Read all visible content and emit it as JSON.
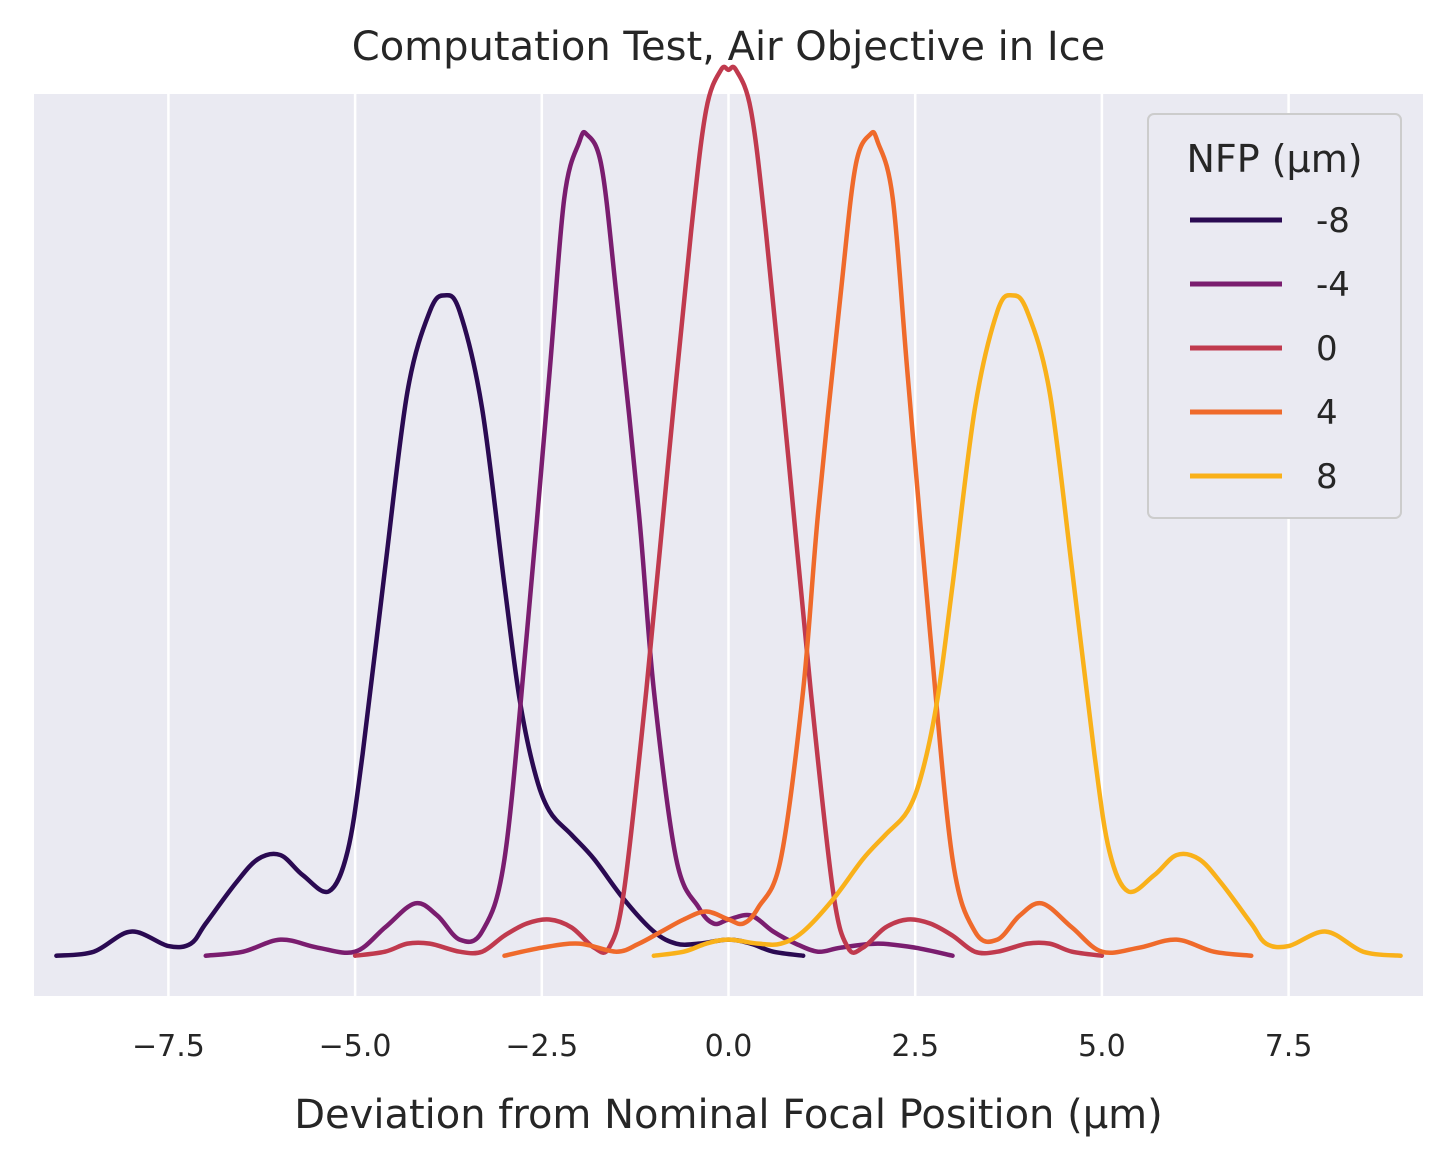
{
  "chart_data": {
    "type": "line",
    "title": "Computation Test, Air Objective in Ice",
    "xlabel": "Deviation from Nominal Focal Position (μm)",
    "ylabel": "",
    "xlim": [
      -9.3,
      9.3
    ],
    "ylim": [
      -0.05,
      1.07
    ],
    "xticks": [
      -7.5,
      -5.0,
      -2.5,
      0.0,
      2.5,
      5.0,
      7.5
    ],
    "xtick_labels": [
      "−7.5",
      "−5.0",
      "−2.5",
      "0.0",
      "2.5",
      "5.0",
      "7.5"
    ],
    "grid": "vertical",
    "background": "#eaeaf2",
    "legend": {
      "title": "NFP (μm)",
      "placement": "top-right"
    },
    "series": [
      {
        "name": "-8",
        "color": "#2a0a52",
        "x_range": [
          -9.0,
          1.0
        ],
        "points": [
          [
            -9.0,
            0.0
          ],
          [
            -8.5,
            0.005
          ],
          [
            -8.0,
            0.03
          ],
          [
            -7.5,
            0.012
          ],
          [
            -7.2,
            0.015
          ],
          [
            -7.0,
            0.04
          ],
          [
            -6.6,
            0.09
          ],
          [
            -6.3,
            0.12
          ],
          [
            -6.0,
            0.125
          ],
          [
            -5.7,
            0.1
          ],
          [
            -5.35,
            0.08
          ],
          [
            -5.1,
            0.13
          ],
          [
            -4.9,
            0.25
          ],
          [
            -4.6,
            0.48
          ],
          [
            -4.3,
            0.7
          ],
          [
            -4.0,
            0.8
          ],
          [
            -3.8,
            0.82
          ],
          [
            -3.6,
            0.8
          ],
          [
            -3.3,
            0.68
          ],
          [
            -3.0,
            0.46
          ],
          [
            -2.8,
            0.32
          ],
          [
            -2.6,
            0.23
          ],
          [
            -2.4,
            0.18
          ],
          [
            -2.1,
            0.15
          ],
          [
            -1.8,
            0.12
          ],
          [
            -1.4,
            0.07
          ],
          [
            -1.0,
            0.03
          ],
          [
            -0.7,
            0.015
          ],
          [
            -0.4,
            0.015
          ],
          [
            0.0,
            0.02
          ],
          [
            0.3,
            0.015
          ],
          [
            0.6,
            0.005
          ],
          [
            1.0,
            0.0
          ]
        ]
      },
      {
        "name": "-4",
        "color": "#7a1d6f",
        "x_range": [
          -7.0,
          3.0
        ],
        "points": [
          [
            -7.0,
            0.0
          ],
          [
            -6.5,
            0.005
          ],
          [
            -6.0,
            0.02
          ],
          [
            -5.5,
            0.01
          ],
          [
            -5.0,
            0.005
          ],
          [
            -4.6,
            0.035
          ],
          [
            -4.2,
            0.065
          ],
          [
            -3.9,
            0.05
          ],
          [
            -3.6,
            0.02
          ],
          [
            -3.3,
            0.03
          ],
          [
            -3.0,
            0.12
          ],
          [
            -2.7,
            0.4
          ],
          [
            -2.4,
            0.72
          ],
          [
            -2.2,
            0.94
          ],
          [
            -2.0,
            1.01
          ],
          [
            -1.9,
            1.02
          ],
          [
            -1.7,
            0.98
          ],
          [
            -1.5,
            0.82
          ],
          [
            -1.2,
            0.55
          ],
          [
            -1.0,
            0.33
          ],
          [
            -0.7,
            0.12
          ],
          [
            -0.4,
            0.06
          ],
          [
            -0.2,
            0.04
          ],
          [
            0.0,
            0.045
          ],
          [
            0.3,
            0.05
          ],
          [
            0.6,
            0.03
          ],
          [
            0.9,
            0.015
          ],
          [
            1.2,
            0.005
          ],
          [
            1.5,
            0.01
          ],
          [
            2.0,
            0.015
          ],
          [
            2.5,
            0.01
          ],
          [
            3.0,
            0.0
          ]
        ]
      },
      {
        "name": "0",
        "color": "#c03a4e",
        "x_range": [
          -5.0,
          5.0
        ],
        "points": [
          [
            -5.0,
            0.0
          ],
          [
            -4.6,
            0.005
          ],
          [
            -4.3,
            0.015
          ],
          [
            -4.0,
            0.015
          ],
          [
            -3.6,
            0.005
          ],
          [
            -3.3,
            0.005
          ],
          [
            -3.0,
            0.025
          ],
          [
            -2.7,
            0.04
          ],
          [
            -2.4,
            0.045
          ],
          [
            -2.1,
            0.035
          ],
          [
            -1.8,
            0.01
          ],
          [
            -1.6,
            0.01
          ],
          [
            -1.4,
            0.08
          ],
          [
            -1.1,
            0.33
          ],
          [
            -0.8,
            0.62
          ],
          [
            -0.5,
            0.9
          ],
          [
            -0.3,
            1.05
          ],
          [
            -0.1,
            1.1
          ],
          [
            0.0,
            1.1
          ],
          [
            0.1,
            1.1
          ],
          [
            0.3,
            1.05
          ],
          [
            0.5,
            0.9
          ],
          [
            0.8,
            0.62
          ],
          [
            1.1,
            0.33
          ],
          [
            1.4,
            0.08
          ],
          [
            1.6,
            0.01
          ],
          [
            1.8,
            0.01
          ],
          [
            2.1,
            0.035
          ],
          [
            2.4,
            0.045
          ],
          [
            2.7,
            0.04
          ],
          [
            3.0,
            0.025
          ],
          [
            3.3,
            0.005
          ],
          [
            3.6,
            0.005
          ],
          [
            4.0,
            0.015
          ],
          [
            4.3,
            0.015
          ],
          [
            4.6,
            0.005
          ],
          [
            5.0,
            0.0
          ]
        ]
      },
      {
        "name": "4",
        "color": "#ef6a2b",
        "x_range": [
          -3.0,
          7.0
        ],
        "points": [
          [
            -3.0,
            0.0
          ],
          [
            -2.5,
            0.01
          ],
          [
            -2.0,
            0.015
          ],
          [
            -1.5,
            0.005
          ],
          [
            -1.2,
            0.015
          ],
          [
            -0.9,
            0.03
          ],
          [
            -0.6,
            0.045
          ],
          [
            -0.3,
            0.055
          ],
          [
            0.0,
            0.045
          ],
          [
            0.2,
            0.04
          ],
          [
            0.4,
            0.06
          ],
          [
            0.7,
            0.12
          ],
          [
            1.0,
            0.33
          ],
          [
            1.2,
            0.55
          ],
          [
            1.5,
            0.82
          ],
          [
            1.7,
            0.98
          ],
          [
            1.9,
            1.02
          ],
          [
            2.0,
            1.01
          ],
          [
            2.2,
            0.94
          ],
          [
            2.4,
            0.72
          ],
          [
            2.7,
            0.4
          ],
          [
            3.0,
            0.12
          ],
          [
            3.3,
            0.03
          ],
          [
            3.6,
            0.02
          ],
          [
            3.9,
            0.05
          ],
          [
            4.2,
            0.065
          ],
          [
            4.6,
            0.035
          ],
          [
            5.0,
            0.005
          ],
          [
            5.5,
            0.01
          ],
          [
            6.0,
            0.02
          ],
          [
            6.5,
            0.005
          ],
          [
            7.0,
            0.0
          ]
        ]
      },
      {
        "name": "8",
        "color": "#f9b11a",
        "x_range": [
          -1.0,
          9.0
        ],
        "points": [
          [
            -1.0,
            0.0
          ],
          [
            -0.6,
            0.005
          ],
          [
            -0.3,
            0.015
          ],
          [
            0.0,
            0.02
          ],
          [
            0.4,
            0.015
          ],
          [
            0.7,
            0.015
          ],
          [
            1.0,
            0.03
          ],
          [
            1.4,
            0.07
          ],
          [
            1.8,
            0.12
          ],
          [
            2.1,
            0.15
          ],
          [
            2.4,
            0.18
          ],
          [
            2.6,
            0.23
          ],
          [
            2.8,
            0.32
          ],
          [
            3.0,
            0.46
          ],
          [
            3.3,
            0.68
          ],
          [
            3.6,
            0.8
          ],
          [
            3.8,
            0.82
          ],
          [
            4.0,
            0.8
          ],
          [
            4.3,
            0.7
          ],
          [
            4.6,
            0.48
          ],
          [
            4.9,
            0.25
          ],
          [
            5.1,
            0.13
          ],
          [
            5.35,
            0.08
          ],
          [
            5.7,
            0.1
          ],
          [
            6.0,
            0.125
          ],
          [
            6.3,
            0.12
          ],
          [
            6.6,
            0.09
          ],
          [
            7.0,
            0.04
          ],
          [
            7.2,
            0.015
          ],
          [
            7.5,
            0.012
          ],
          [
            8.0,
            0.03
          ],
          [
            8.5,
            0.005
          ],
          [
            9.0,
            0.0
          ]
        ]
      }
    ]
  }
}
